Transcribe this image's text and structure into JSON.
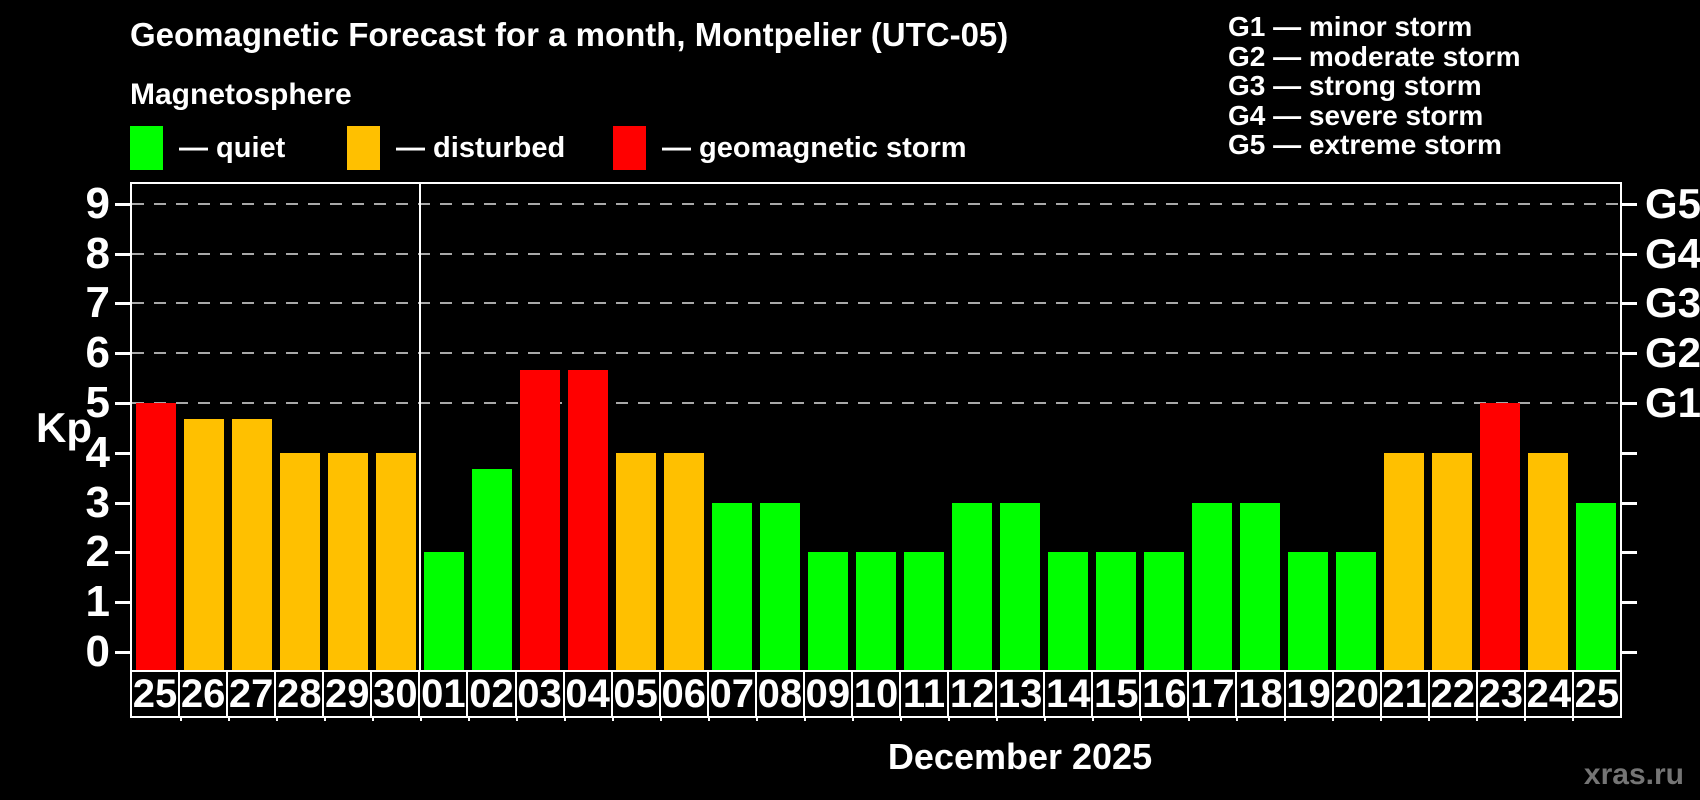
{
  "title": "Geomagnetic Forecast for a month, Montpelier (UTC-05)",
  "subtitle": "Magnetosphere",
  "legend": {
    "items": [
      {
        "key": "quiet",
        "label": "— quiet",
        "color": "#00ff00"
      },
      {
        "key": "disturbed",
        "label": "— disturbed",
        "color": "#ffc000"
      },
      {
        "key": "storm",
        "label": "— geomagnetic storm",
        "color": "#ff0000"
      }
    ]
  },
  "g_legend": [
    {
      "text": "G1 — minor storm"
    },
    {
      "text": "G2 — moderate storm"
    },
    {
      "text": "G3 — strong storm"
    },
    {
      "text": "G4 — severe storm"
    },
    {
      "text": "G5 — extreme storm"
    }
  ],
  "chart_data": {
    "type": "bar",
    "title": "Geomagnetic Forecast for a month, Montpelier (UTC-05)",
    "xlabel": "December 2025",
    "ylabel": "Kp",
    "ylim": [
      0,
      9
    ],
    "yticks": [
      0,
      1,
      2,
      3,
      4,
      5,
      6,
      7,
      8,
      9
    ],
    "gridlines_at": [
      5,
      6,
      7,
      8,
      9
    ],
    "grid": "dashed horizontal at storm levels only",
    "legend_position": "top",
    "right_axis_labels": [
      {
        "kp": 5,
        "label": "G1"
      },
      {
        "kp": 6,
        "label": "G2"
      },
      {
        "kp": 7,
        "label": "G3"
      },
      {
        "kp": 8,
        "label": "G4"
      },
      {
        "kp": 9,
        "label": "G5"
      }
    ],
    "month_divider_after_index": 5,
    "status_colors": {
      "quiet": "#00ff00",
      "disturbed": "#ffc000",
      "storm": "#ff0000"
    },
    "days": [
      {
        "day": "25",
        "kp": 5.0,
        "status": "storm"
      },
      {
        "day": "26",
        "kp": 4.67,
        "status": "disturbed"
      },
      {
        "day": "27",
        "kp": 4.67,
        "status": "disturbed"
      },
      {
        "day": "28",
        "kp": 4.0,
        "status": "disturbed"
      },
      {
        "day": "29",
        "kp": 4.0,
        "status": "disturbed"
      },
      {
        "day": "30",
        "kp": 4.0,
        "status": "disturbed"
      },
      {
        "day": "01",
        "kp": 2.0,
        "status": "quiet"
      },
      {
        "day": "02",
        "kp": 3.67,
        "status": "quiet"
      },
      {
        "day": "03",
        "kp": 5.67,
        "status": "storm"
      },
      {
        "day": "04",
        "kp": 5.67,
        "status": "storm"
      },
      {
        "day": "05",
        "kp": 4.0,
        "status": "disturbed"
      },
      {
        "day": "06",
        "kp": 4.0,
        "status": "disturbed"
      },
      {
        "day": "07",
        "kp": 3.0,
        "status": "quiet"
      },
      {
        "day": "08",
        "kp": 3.0,
        "status": "quiet"
      },
      {
        "day": "09",
        "kp": 2.0,
        "status": "quiet"
      },
      {
        "day": "10",
        "kp": 2.0,
        "status": "quiet"
      },
      {
        "day": "11",
        "kp": 2.0,
        "status": "quiet"
      },
      {
        "day": "12",
        "kp": 3.0,
        "status": "quiet"
      },
      {
        "day": "13",
        "kp": 3.0,
        "status": "quiet"
      },
      {
        "day": "14",
        "kp": 2.0,
        "status": "quiet"
      },
      {
        "day": "15",
        "kp": 2.0,
        "status": "quiet"
      },
      {
        "day": "16",
        "kp": 2.0,
        "status": "quiet"
      },
      {
        "day": "17",
        "kp": 3.0,
        "status": "quiet"
      },
      {
        "day": "18",
        "kp": 3.0,
        "status": "quiet"
      },
      {
        "day": "19",
        "kp": 2.0,
        "status": "quiet"
      },
      {
        "day": "20",
        "kp": 2.0,
        "status": "quiet"
      },
      {
        "day": "21",
        "kp": 4.0,
        "status": "disturbed"
      },
      {
        "day": "22",
        "kp": 4.0,
        "status": "disturbed"
      },
      {
        "day": "23",
        "kp": 5.0,
        "status": "storm"
      },
      {
        "day": "24",
        "kp": 4.0,
        "status": "disturbed"
      },
      {
        "day": "25",
        "kp": 3.0,
        "status": "quiet"
      }
    ],
    "xlabel_centered_under": "december-section"
  },
  "watermark": "xras.ru",
  "colors": {
    "background": "#000000",
    "text": "#ffffff",
    "quiet": "#00ff00",
    "disturbed": "#ffc000",
    "storm": "#ff0000",
    "gridline": "#a8a8a8",
    "watermark": "#757575"
  }
}
